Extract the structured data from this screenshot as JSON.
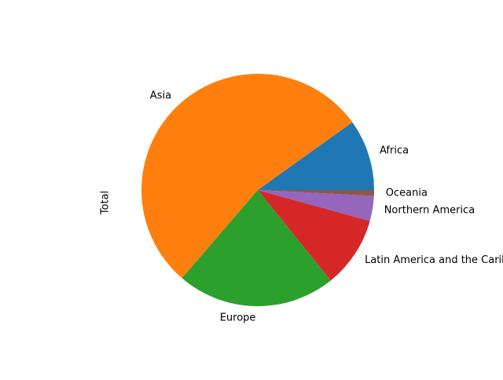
{
  "chart_data": {
    "type": "pie",
    "ylabel": "Total",
    "start_angle_deg": 0,
    "direction": "counterclockwise",
    "slices": [
      {
        "label": "Africa",
        "value": 9.9,
        "color": "#1f77b4"
      },
      {
        "label": "Asia",
        "value": 53.8,
        "color": "#ff7f0e"
      },
      {
        "label": "Europe",
        "value": 22.1,
        "color": "#2ca02c"
      },
      {
        "label": "Latin America and the Caribbean",
        "value": 9.9,
        "color": "#d62728"
      },
      {
        "label": "Northern America",
        "value": 3.5,
        "color": "#9467bd"
      },
      {
        "label": "Oceania",
        "value": 0.8,
        "color": "#8c564b"
      }
    ]
  }
}
